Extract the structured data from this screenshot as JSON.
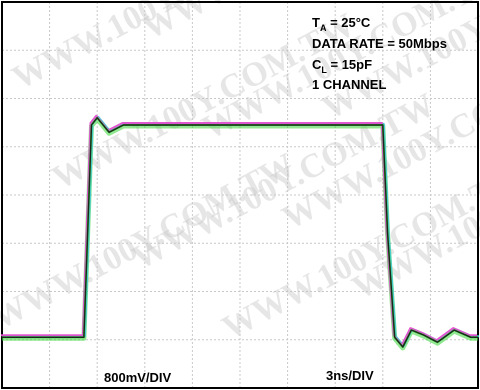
{
  "chart_data": {
    "type": "line",
    "title": "",
    "xlabel": "",
    "ylabel": "",
    "grid": true,
    "conditions": {
      "temperature": {
        "symbol": "T",
        "subscript": "A",
        "value": " = 25°C"
      },
      "data_rate": "DATA RATE = 50Mbps",
      "load_capacitance": {
        "symbol": "C",
        "subscript": "L",
        "value": " = 15pF"
      },
      "channels": "1 CHANNEL"
    },
    "vertical_scale": "800mV/DIV",
    "horizontal_scale": "3ns/DIV",
    "divisions": {
      "x": 10,
      "y": 8
    },
    "waveform": {
      "description_levels_div": {
        "high": 5.45,
        "low": 1.05
      },
      "time_div": [
        0.0,
        1.5,
        1.72,
        1.88,
        2.0,
        2.25,
        2.55,
        2.9,
        3.25,
        3.55,
        3.9,
        4.3,
        5.0,
        6.0,
        8.0,
        8.1,
        8.25,
        8.42,
        8.6,
        8.85,
        9.15,
        9.5,
        9.85,
        10.0
      ],
      "level_div": [
        1.05,
        1.05,
        1.05,
        5.45,
        5.6,
        5.3,
        5.45,
        5.45,
        5.45,
        5.45,
        5.45,
        5.45,
        5.45,
        5.45,
        5.45,
        3.2,
        1.05,
        0.85,
        1.2,
        1.1,
        0.95,
        1.2,
        1.05,
        1.05
      ]
    },
    "colors": {
      "frame": "#000000",
      "grid": "#c8c8c8",
      "trace_green": "#39d639",
      "trace_magenta": "#e04fd0",
      "trace_cyan": "#40c8d8",
      "trace_dark": "#1a1a1a"
    },
    "watermark": "WWW.100Y.COM.TW"
  }
}
